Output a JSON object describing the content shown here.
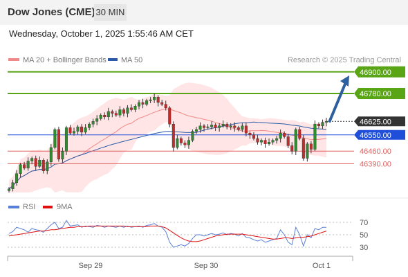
{
  "header": {
    "title": "Dow Jones (CME)",
    "timeframe": "30 MIN"
  },
  "datetime": "Wednesday, October 1, 2025 1:55:46 AM CET",
  "colors": {
    "candle_up": "#2e8b2e",
    "candle_down": "#c42b2b",
    "ma20": "#f08a8a",
    "bollinger_fill": "#ffe0e0",
    "ma50": "#2b5aa8",
    "green_level": "#5aa516",
    "blue_level": "#1f4fd8",
    "red_level": "#e06060",
    "arrow": "#2e5f9e",
    "rsi": "#5a7fd6",
    "rsi_ma": "#e01010"
  },
  "chart_data": [
    {
      "type": "candlestick",
      "title": "",
      "legend": [
        {
          "name": "MA 20 + Bollinger Bands",
          "color": "#f08a8a"
        },
        {
          "name": "MA 50",
          "color": "#2b5aa8"
        }
      ],
      "legend_position": "top-left",
      "watermark": "Research © 2025 Trading Central",
      "x_ticks": [
        "Sep 29",
        "Sep 30",
        "Oct 1"
      ],
      "ylim": [
        46230,
        46930
      ],
      "levels": [
        {
          "value": 46900.0,
          "label": "46900.00",
          "style": "green-band"
        },
        {
          "value": 46780.0,
          "label": "46780.00",
          "style": "green-band"
        },
        {
          "value": 46625.0,
          "label": "46625.00",
          "style": "current-price"
        },
        {
          "value": 46550.0,
          "label": "46550.00",
          "style": "blue-band"
        },
        {
          "value": 46460.0,
          "label": "46460.00",
          "style": "red-text"
        },
        {
          "value": 46390.0,
          "label": "46390.00",
          "style": "red-text"
        }
      ],
      "arrow": {
        "from": 46620,
        "to": 46880,
        "direction": "up"
      },
      "closes": [
        46250,
        46285,
        46335,
        46385,
        46365,
        46405,
        46420,
        46375,
        46410,
        46350,
        46400,
        46480,
        46580,
        46415,
        46460,
        46590,
        46560,
        46570,
        46595,
        46565,
        46590,
        46610,
        46625,
        46640,
        46660,
        46650,
        46680,
        46670,
        46660,
        46690,
        46670,
        46700,
        46690,
        46710,
        46730,
        46720,
        46740,
        46745,
        46760,
        46730,
        46720,
        46700,
        46610,
        46480,
        46530,
        46505,
        46495,
        46520,
        46570,
        46580,
        46600,
        46590,
        46595,
        46605,
        46590,
        46600,
        46610,
        46595,
        46600,
        46590,
        46580,
        46600,
        46560,
        46550,
        46530,
        46510,
        46520,
        46500,
        46510,
        46520,
        46530,
        46560,
        46540,
        46490,
        46460,
        46580,
        46530,
        46420,
        46500,
        46470,
        46610,
        46600,
        46620,
        46625
      ]
    },
    {
      "type": "line",
      "title": "",
      "legend": [
        {
          "name": "RSI",
          "color": "#5a7fd6"
        },
        {
          "name": "9MA",
          "color": "#e01010"
        }
      ],
      "legend_position": "top-left",
      "y_ticks": [
        70,
        50,
        30
      ],
      "ylim": [
        20,
        80
      ],
      "series": [
        {
          "name": "RSI",
          "values": [
            52,
            55,
            62,
            60,
            58,
            54,
            60,
            58,
            57,
            54,
            60,
            66,
            70,
            60,
            62,
            73,
            64,
            65,
            66,
            62,
            64,
            63,
            62,
            65,
            64,
            62,
            64,
            63,
            62,
            64,
            62,
            64,
            62,
            63,
            64,
            62,
            65,
            66,
            68,
            64,
            62,
            55,
            38,
            30,
            32,
            34,
            32,
            36,
            44,
            50,
            50,
            48,
            50,
            52,
            50,
            51,
            53,
            50,
            52,
            51,
            48,
            52,
            46,
            45,
            42,
            40,
            42,
            38,
            40,
            42,
            44,
            58,
            50,
            38,
            34,
            62,
            50,
            32,
            50,
            45,
            60,
            58,
            62,
            62
          ]
        },
        {
          "name": "9MA",
          "values": [
            48,
            49,
            50,
            51,
            52,
            53,
            54,
            55,
            56,
            56,
            57,
            58,
            58,
            59,
            60,
            61,
            62,
            62,
            63,
            63,
            63,
            64,
            64,
            64,
            64,
            64,
            64,
            64,
            64,
            64,
            64,
            63,
            63,
            63,
            63,
            63,
            63,
            64,
            64,
            64,
            63,
            61,
            57,
            53,
            49,
            45,
            42,
            40,
            39,
            39,
            40,
            42,
            44,
            46,
            48,
            49,
            50,
            51,
            51,
            51,
            51,
            51,
            50,
            49,
            48,
            47,
            46,
            45,
            44,
            43,
            43,
            44,
            45,
            45,
            44,
            45,
            46,
            46,
            47,
            48,
            50,
            52,
            54,
            56
          ]
        }
      ]
    }
  ]
}
